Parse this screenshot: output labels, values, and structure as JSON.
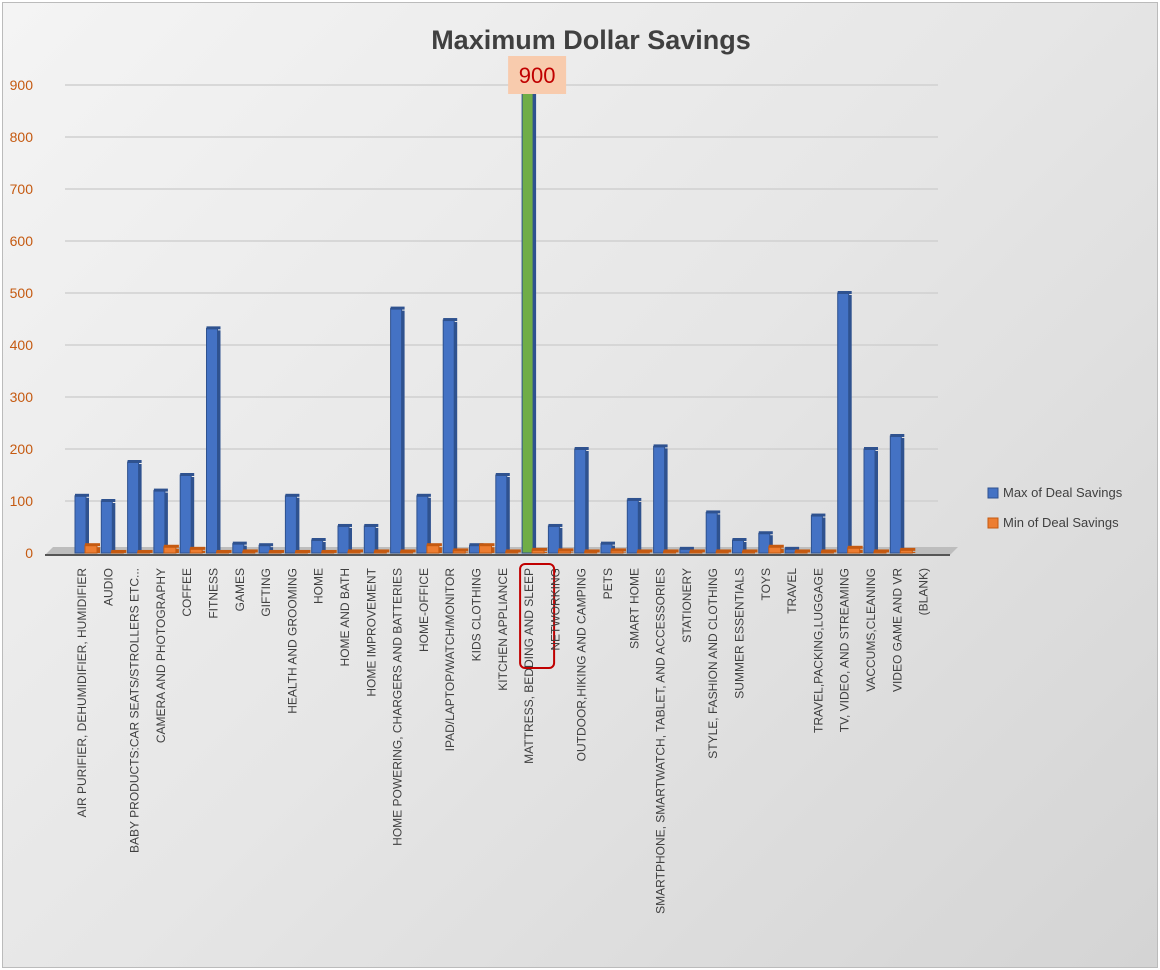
{
  "chart_data": {
    "type": "bar",
    "title": "Maximum Dollar Savings",
    "ylim": [
      0,
      900
    ],
    "yticks": [
      0,
      100,
      200,
      300,
      400,
      500,
      600,
      700,
      800,
      900
    ],
    "grid": true,
    "legend": "right",
    "categories": [
      "AIR PURIFIER, DEHUMIDIFIER, HUMIDIFIER",
      "AUDIO",
      "BABY PRODUCTS:CAR SEATS/STROLLERS ETC...",
      "CAMERA AND PHOTOGRAPHY",
      "COFFEE",
      "FITNESS",
      "GAMES",
      "GIFTING",
      "HEALTH AND GROOMING",
      "HOME",
      "HOME AND BATH",
      "HOME IMPROVEMENT",
      "HOME POWERING, CHARGERS AND BATTERIES",
      "HOME-OFFICE",
      "IPAD/LAPTOP/WATCH/MONITOR",
      "KIDS CLOTHING",
      "KITCHEN APPLIANCE",
      "MATTRESS, BEDDING AND SLEEP",
      "NETWORKING",
      "OUTDOOR,HIKING AND CAMPING",
      "PETS",
      "SMART HOME",
      "SMARTPHONE, SMARTWATCH, TABLET, AND ACCESSORIES",
      "STATIONERY",
      "STYLE, FASHION AND CLOTHING",
      "SUMMER ESSENTIALS",
      "TOYS",
      "TRAVEL",
      "TRAVEL,PACKING,LUGGAGE",
      "TV, VIDEO, AND STREAMING",
      "VACCUMS,CLEANING",
      "VIDEO GAME AND VR",
      "(BLANK)"
    ],
    "series": [
      {
        "name": "Max of Deal Savings",
        "color": "#4472c4",
        "values": [
          110,
          100,
          175,
          120,
          150,
          432,
          18,
          15,
          110,
          25,
          52,
          52,
          470,
          110,
          448,
          15,
          150,
          900,
          52,
          200,
          18,
          102,
          205,
          8,
          78,
          25,
          38,
          8,
          72,
          500,
          200,
          225,
          0
        ]
      },
      {
        "name": "Min of Deal Savings",
        "color": "#ed7d31",
        "values": [
          15,
          2,
          2,
          12,
          8,
          2,
          3,
          2,
          2,
          2,
          3,
          3,
          3,
          15,
          5,
          15,
          3,
          6,
          5,
          3,
          5,
          3,
          3,
          3,
          3,
          3,
          12,
          3,
          3,
          10,
          3,
          6,
          0
        ]
      }
    ],
    "highlight": {
      "category": "MATTRESS, BEDDING AND SLEEP",
      "color": "#70ad47",
      "label": "900",
      "label_fill": "#f8cbad",
      "label_color": "#c00000",
      "outline_color": "#c00000"
    },
    "tick_color": "#c55a11"
  }
}
